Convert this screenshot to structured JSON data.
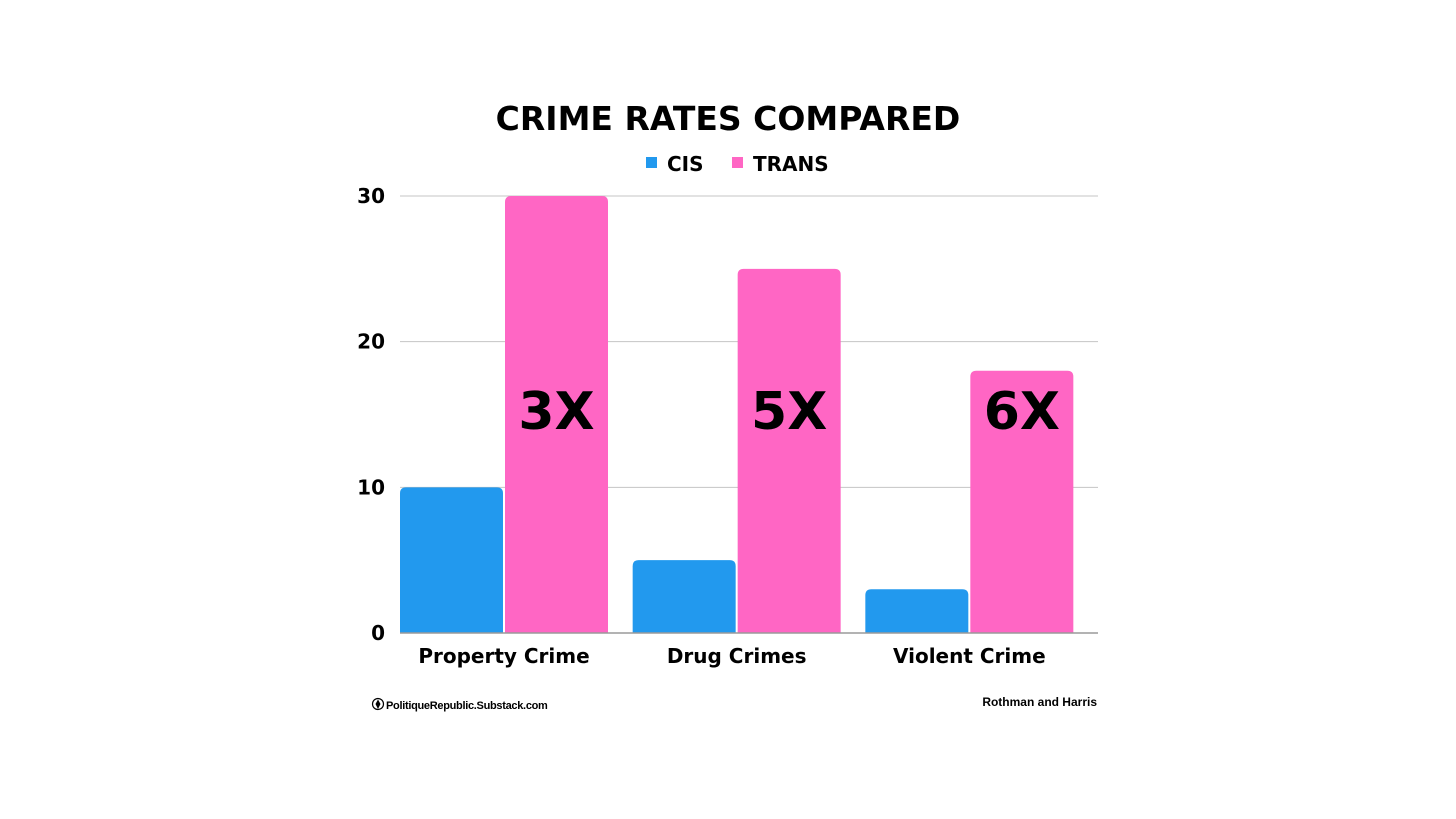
{
  "chart_data": {
    "type": "bar",
    "title": "CRIME RATES COMPARED",
    "categories": [
      "Property Crime",
      "Drug Crimes",
      "Violent Crime"
    ],
    "series": [
      {
        "name": "CIS",
        "color": "#2299ee",
        "values": [
          10,
          5,
          3
        ]
      },
      {
        "name": "TRANS",
        "color": "#ff66c4",
        "values": [
          30,
          25,
          18
        ]
      }
    ],
    "annotations": [
      "3X",
      "5X",
      "6X"
    ],
    "ylim": [
      0,
      30
    ],
    "yticks": [
      0,
      10,
      20,
      30
    ],
    "grid": true,
    "legend": "top-center",
    "xlabel": "",
    "ylabel": ""
  },
  "footer": {
    "credit": "PolitiqueRepublic.Substack.com",
    "credit_icon": "pen-nib-icon",
    "source": "Rothman and Harris"
  }
}
